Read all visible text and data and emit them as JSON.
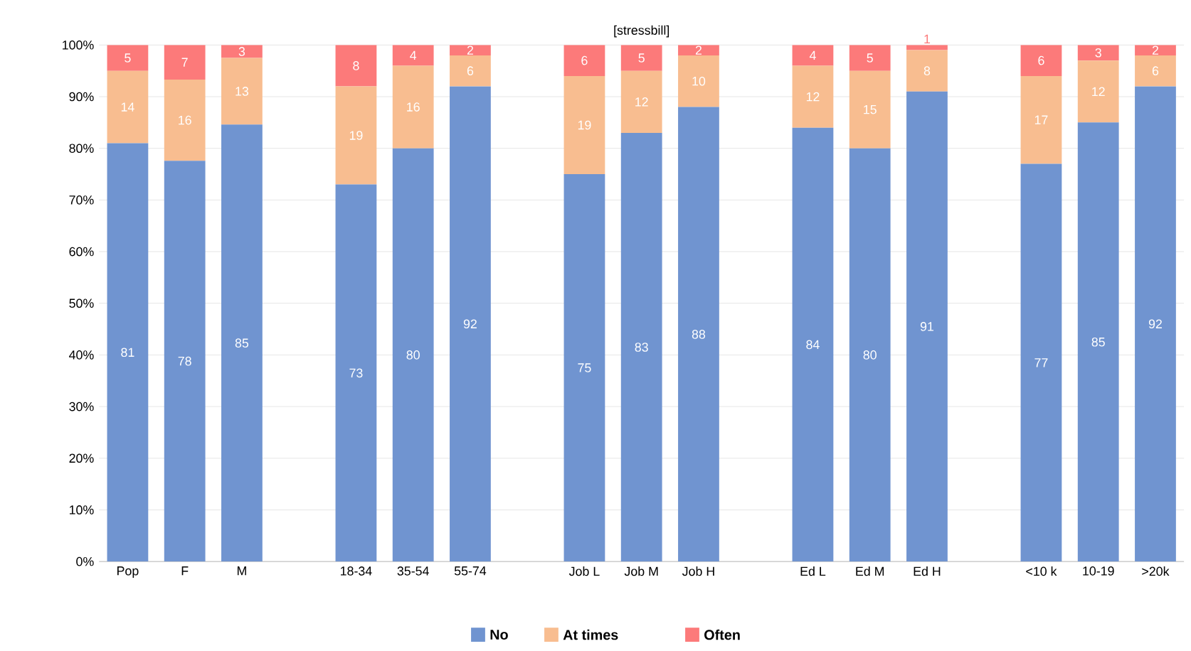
{
  "chart_data": {
    "type": "bar",
    "stacked": true,
    "title": "[stressbill]",
    "categories": [
      "Pop",
      "F",
      "M",
      null,
      "18-34",
      "35-54",
      "55-74",
      null,
      "Job L",
      "Job M",
      "Job H",
      null,
      "Ed L",
      "Ed M",
      "Ed H",
      null,
      "<10 k",
      "10-19",
      ">20k"
    ],
    "series": [
      {
        "name": "No",
        "color": "#7094d0",
        "values": [
          81,
          77.6,
          84.6,
          null,
          73,
          80,
          92,
          null,
          75,
          83,
          88,
          null,
          84,
          80,
          91,
          null,
          77,
          85,
          92
        ],
        "value_labels": [
          "81",
          "78",
          "85",
          null,
          "73",
          "80",
          "92",
          null,
          "75",
          "83",
          "88",
          null,
          "84",
          "80",
          "91",
          null,
          "77",
          "85",
          "92"
        ]
      },
      {
        "name": "At times",
        "color": "#f8bd90",
        "values": [
          14,
          15.7,
          12.9,
          null,
          19,
          16,
          6,
          null,
          19,
          12,
          10,
          null,
          12,
          15,
          8,
          null,
          17,
          12,
          6
        ],
        "value_labels": [
          "14",
          "16",
          "13",
          null,
          "19",
          "16",
          "6",
          null,
          "19",
          "12",
          "10",
          null,
          "12",
          "15",
          "8",
          null,
          "17",
          "12",
          "6"
        ]
      },
      {
        "name": "Often",
        "color": "#fc7a7a",
        "values": [
          5,
          6.7,
          2.5,
          null,
          8,
          4,
          2,
          null,
          6,
          5,
          2,
          null,
          4,
          5,
          1,
          null,
          6,
          3,
          2
        ],
        "value_labels": [
          "5",
          "7",
          "3",
          null,
          "8",
          "4",
          "2",
          null,
          "6",
          "5",
          "2",
          null,
          "4",
          "5",
          "1",
          null,
          "6",
          "3",
          "2"
        ]
      }
    ],
    "ylim": [
      0,
      100
    ],
    "yticks": [
      {
        "value": 0,
        "label": "0%"
      },
      {
        "value": 10,
        "label": "10%"
      },
      {
        "value": 20,
        "label": "20%"
      },
      {
        "value": 30,
        "label": "30%"
      },
      {
        "value": 40,
        "label": "40%"
      },
      {
        "value": 50,
        "label": "50%"
      },
      {
        "value": 60,
        "label": "60%"
      },
      {
        "value": 70,
        "label": "70%"
      },
      {
        "value": 80,
        "label": "80%"
      },
      {
        "value": 90,
        "label": "90%"
      },
      {
        "value": 100,
        "label": "100%"
      }
    ],
    "grid": "y",
    "legend": "bottom"
  }
}
